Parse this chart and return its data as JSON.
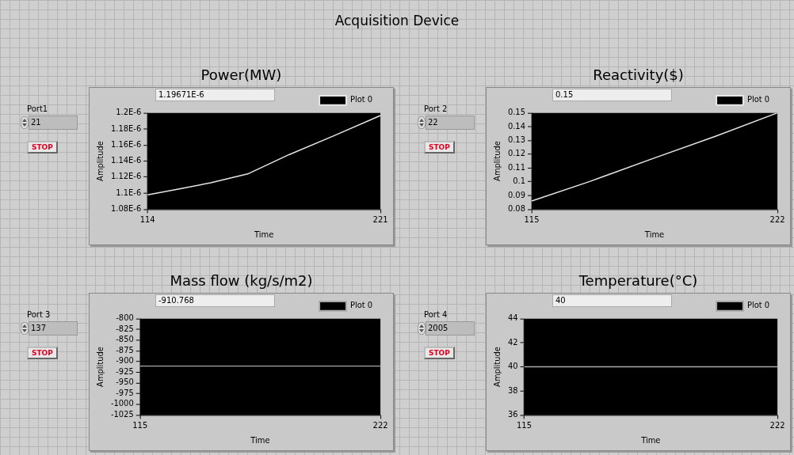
{
  "chart_data": [
    {
      "type": "other",
      "title": "Acquisition Device"
    },
    {
      "type": "line",
      "title": "Power(MW)",
      "xlabel": "Time",
      "ylabel": "Amplitude",
      "legend": "top right",
      "annotations": [
        "Port1",
        "21",
        "STOP",
        "1.19671E-6"
      ],
      "x": [
        114,
        130,
        143,
        160,
        179,
        200,
        221
      ],
      "series": [
        {
          "name": "Plot 0",
          "color": "#e6e6e6",
          "values": [
            1.098e-06,
            1.106e-06,
            1.113e-06,
            1.124e-06,
            1.148e-06,
            1.172e-06,
            1.19671e-06
          ]
        }
      ],
      "xlim": [
        114,
        221
      ],
      "xticks": [
        114,
        221
      ],
      "ylim": [
        1.08e-06,
        1.2e-06
      ],
      "yticks": [
        {
          "value": 1.08e-06,
          "label": "1.08E-6"
        },
        {
          "value": 1.1e-06,
          "label": "1.1E-6"
        },
        {
          "value": 1.12e-06,
          "label": "1.12E-6"
        },
        {
          "value": 1.14e-06,
          "label": "1.14E-6"
        },
        {
          "value": 1.16e-06,
          "label": "1.16E-6"
        },
        {
          "value": 1.18e-06,
          "label": "1.18E-6"
        },
        {
          "value": 1.2e-06,
          "label": "1.2E-6"
        }
      ]
    },
    {
      "type": "line",
      "title": "Reactivity($)",
      "xlabel": "Time",
      "ylabel": "Amplitude",
      "legend": "top right",
      "annotations": [
        "Port 2",
        "22",
        "STOP",
        "0.15"
      ],
      "x": [
        115,
        140,
        168,
        195,
        222
      ],
      "series": [
        {
          "name": "Plot 0",
          "color": "#e6e6e6",
          "values": [
            0.086,
            0.1,
            0.117,
            0.133,
            0.15
          ]
        }
      ],
      "xlim": [
        115,
        222
      ],
      "xticks": [
        115,
        222
      ],
      "ylim": [
        0.08,
        0.15
      ],
      "yticks": [
        0.08,
        0.09,
        {
          "value": 0.1,
          "label": "0.1"
        },
        0.11,
        0.12,
        0.13,
        0.14,
        0.15
      ]
    },
    {
      "type": "line",
      "title": "Mass flow (kg/s/m2)",
      "xlabel": "Time",
      "ylabel": "Amplitude",
      "legend": "top right",
      "annotations": [
        "Port 3",
        "137",
        "STOP",
        "-910.768"
      ],
      "x": [
        115,
        222
      ],
      "series": [
        {
          "name": "Plot 0",
          "color": "#a8a8a8",
          "values": [
            -910.768,
            -910.768
          ]
        }
      ],
      "xlim": [
        115,
        222
      ],
      "xticks": [
        115,
        222
      ],
      "ylim": [
        -1025,
        -800
      ],
      "yticks": [
        -1025,
        -1000,
        -975,
        -950,
        -925,
        -900,
        -875,
        -850,
        -825,
        -800
      ]
    },
    {
      "type": "line",
      "title": "Temperature(°C)",
      "xlabel": "Time",
      "ylabel": "Amplitude",
      "legend": "top right",
      "annotations": [
        "Port 4",
        "2005",
        "STOP",
        "40"
      ],
      "x": [
        115,
        222
      ],
      "series": [
        {
          "name": "Plot 0",
          "color": "#a8a8a8",
          "values": [
            40,
            40
          ]
        }
      ],
      "xlim": [
        115,
        222
      ],
      "xticks": [
        115,
        222
      ],
      "ylim": [
        36,
        44
      ],
      "yticks": [
        36,
        38,
        40,
        42,
        44
      ]
    }
  ]
}
